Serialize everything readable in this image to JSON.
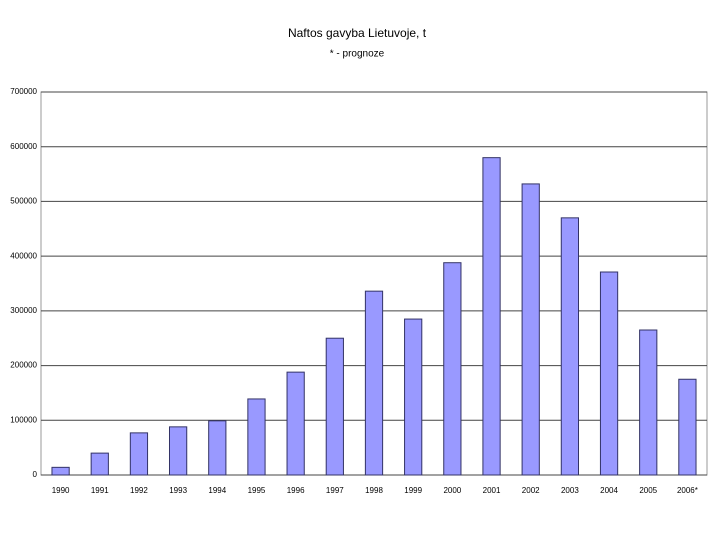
{
  "chart_data": {
    "type": "bar",
    "title": "Naftos gavyba Lietuvoje, t",
    "subtitle": "* - prognoze",
    "categories": [
      "1990",
      "1991",
      "1992",
      "1993",
      "1994",
      "1995",
      "1996",
      "1997",
      "1998",
      "1999",
      "2000",
      "2001",
      "2002",
      "2003",
      "2004",
      "2005",
      "2006*"
    ],
    "values": [
      14000,
      40000,
      77000,
      88000,
      99000,
      139000,
      188000,
      250000,
      336000,
      285000,
      388000,
      580000,
      532000,
      470000,
      371000,
      265000,
      175000
    ],
    "color": "#9999ff",
    "ylim": [
      0,
      700000
    ],
    "yticks": [
      0,
      100000,
      200000,
      300000,
      400000,
      500000,
      600000,
      700000
    ],
    "grid": true
  }
}
